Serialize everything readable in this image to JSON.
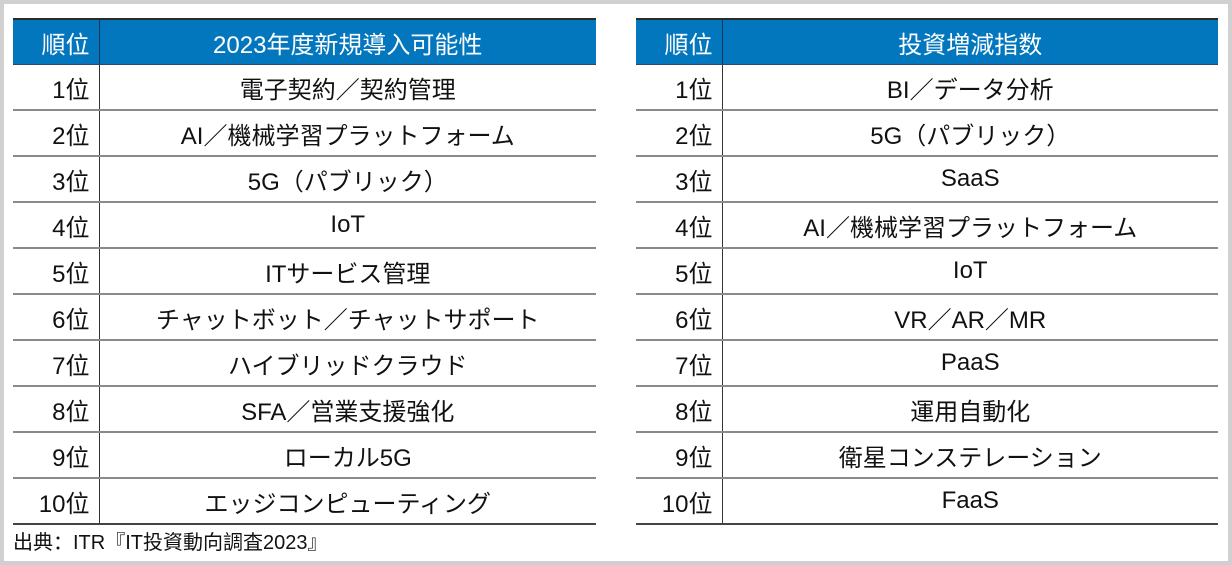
{
  "table1": {
    "headers": [
      "順位",
      "2023年度新規導入可能性"
    ],
    "rows": [
      [
        "1位",
        "電子契約／契約管理"
      ],
      [
        "2位",
        "AI／機械学習プラットフォーム"
      ],
      [
        "3位",
        "5G（パブリック）"
      ],
      [
        "4位",
        "IoT"
      ],
      [
        "5位",
        "ITサービス管理"
      ],
      [
        "6位",
        "チャットボット／チャットサポート"
      ],
      [
        "7位",
        "ハイブリッドクラウド"
      ],
      [
        "8位",
        "SFA／営業支援強化"
      ],
      [
        "9位",
        "ローカル5G"
      ],
      [
        "10位",
        "エッジコンピューティング"
      ]
    ]
  },
  "table2": {
    "headers": [
      "順位",
      "投資増減指数"
    ],
    "rows": [
      [
        "1位",
        "BI／データ分析"
      ],
      [
        "2位",
        "5G（パブリック）"
      ],
      [
        "3位",
        "SaaS"
      ],
      [
        "4位",
        "AI／機械学習プラットフォーム"
      ],
      [
        "5位",
        "IoT"
      ],
      [
        "6位",
        "VR／AR／MR"
      ],
      [
        "7位",
        "PaaS"
      ],
      [
        "8位",
        "運用自動化"
      ],
      [
        "9位",
        "衛星コンステレーション"
      ],
      [
        "10位",
        "FaaS"
      ]
    ]
  },
  "source": "出典：ITR『IT投資動向調査2023』",
  "colors": {
    "header_bg": "#0277be",
    "header_text": "#ffffff"
  }
}
